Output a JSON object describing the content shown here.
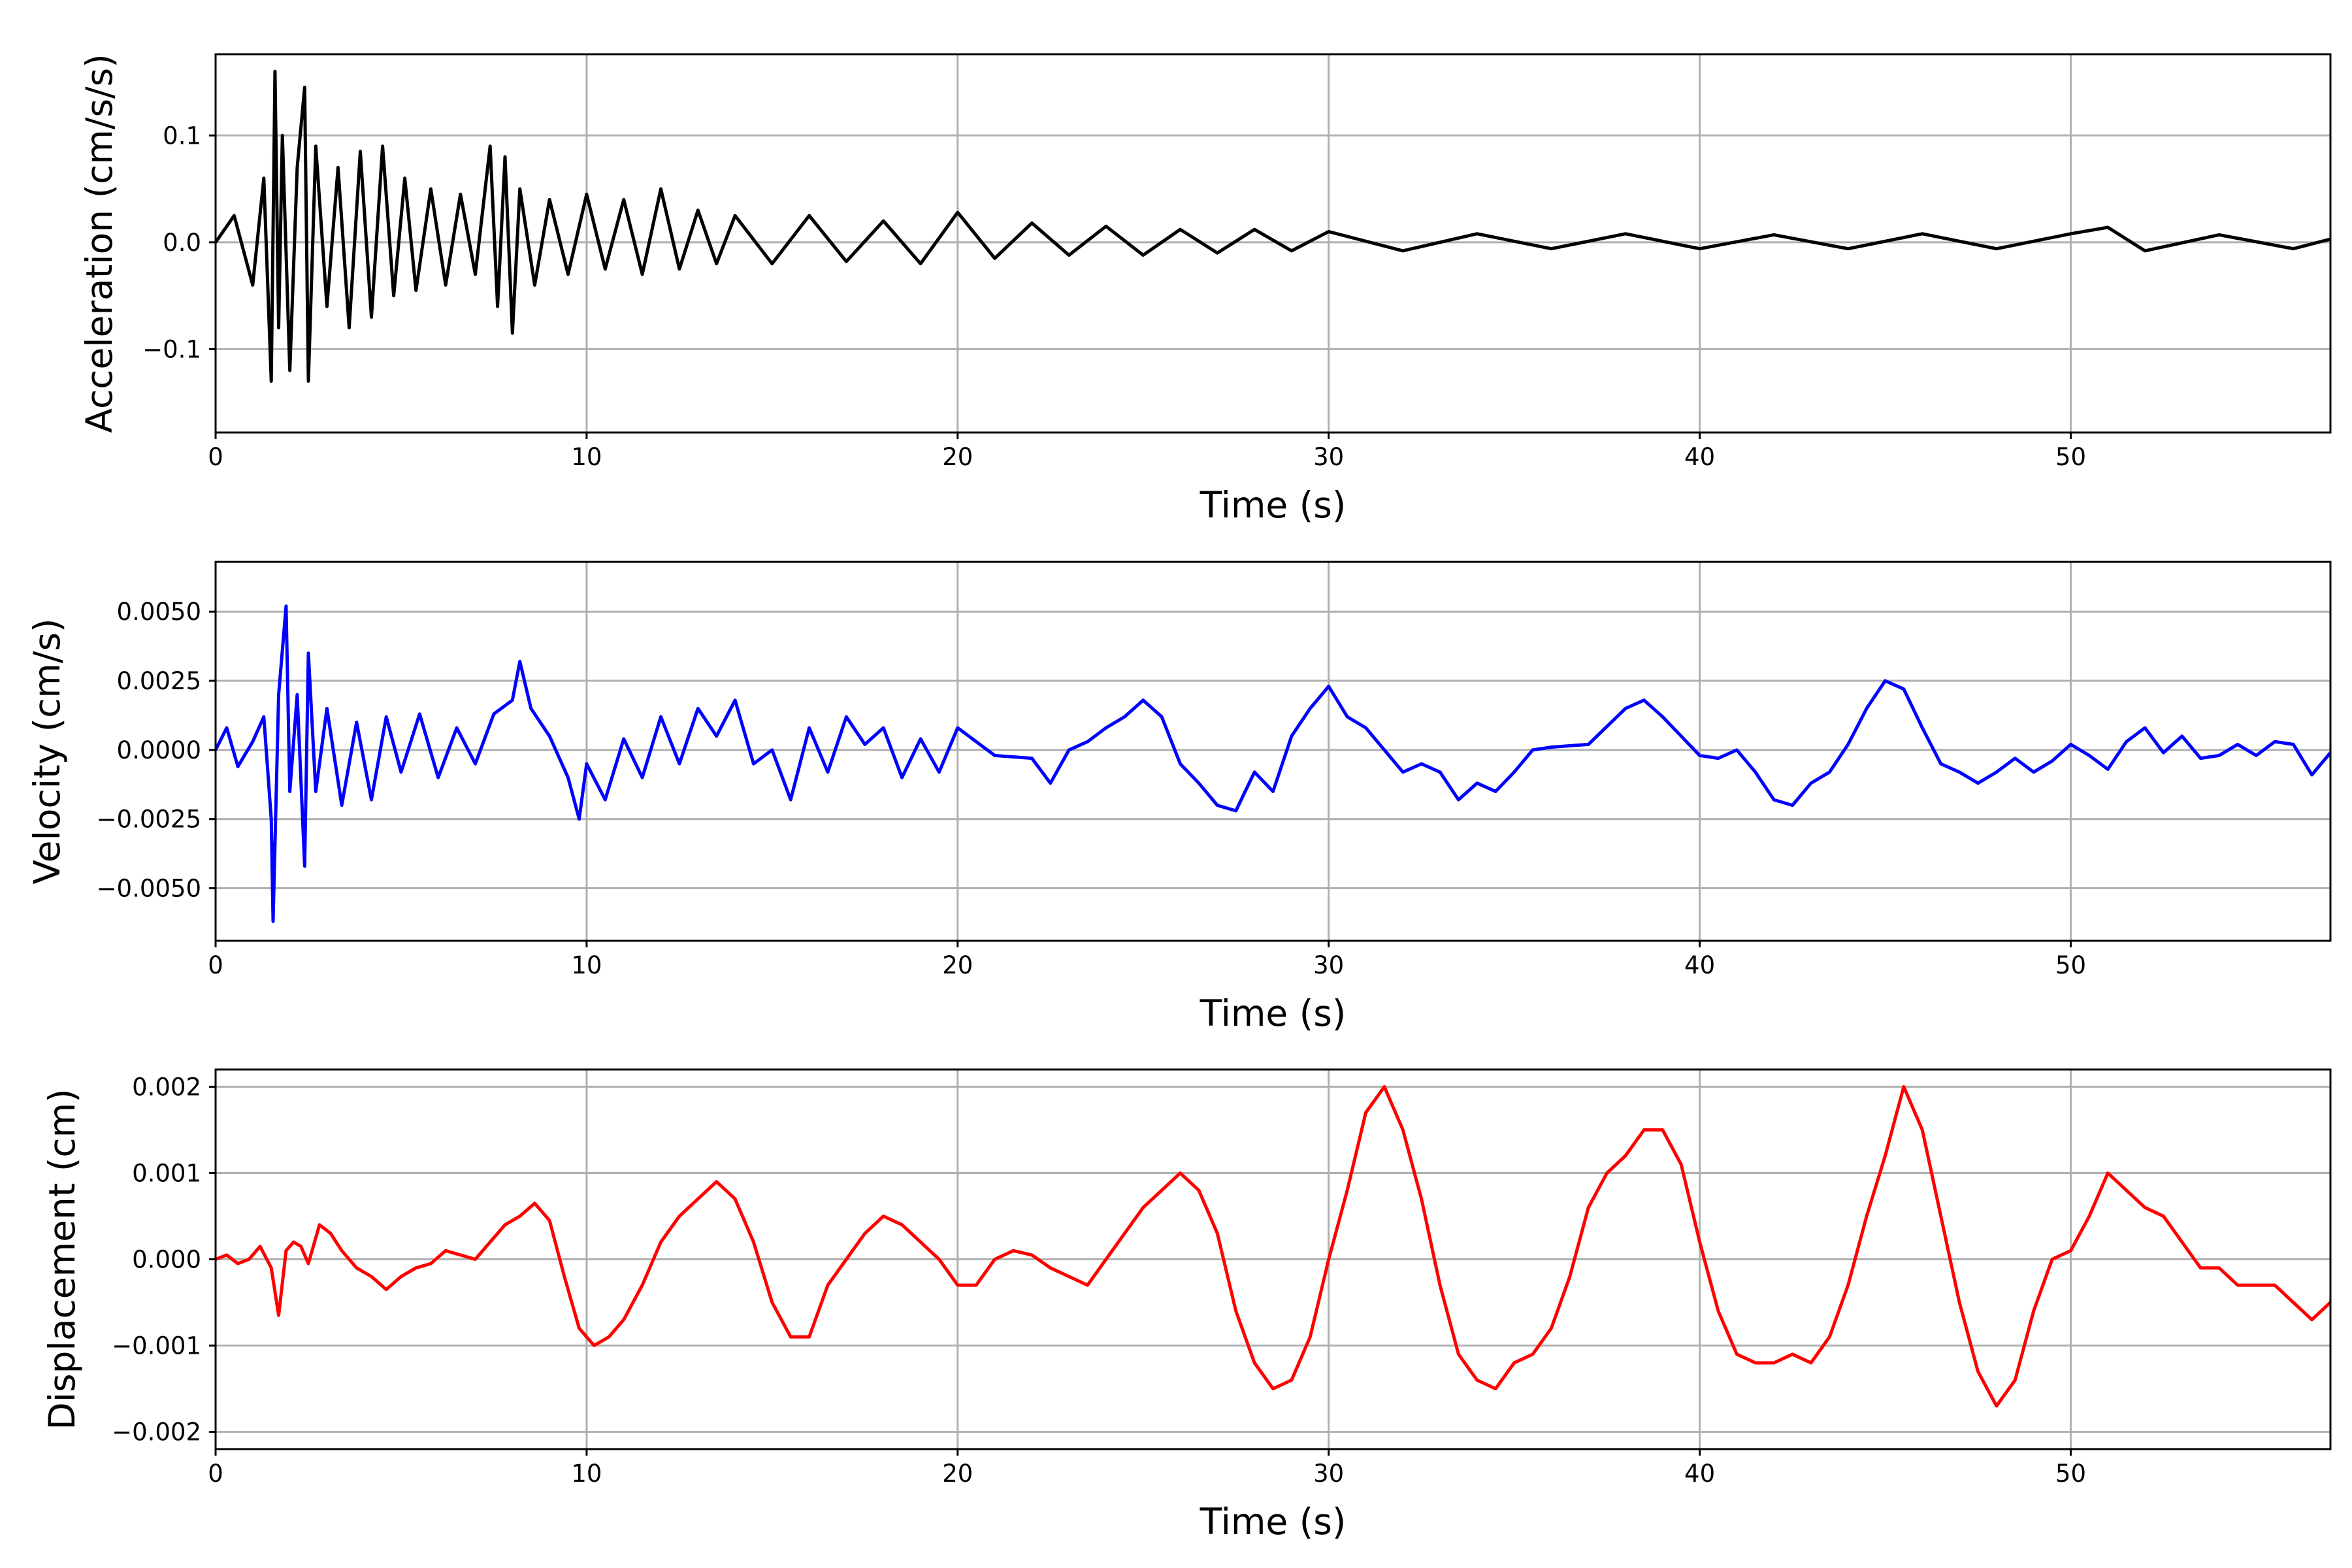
{
  "chart_data": [
    {
      "type": "line",
      "xlabel": "Time (s)",
      "ylabel": "Acceleration (cm/s/s)",
      "xlim": [
        0,
        57
      ],
      "ylim": [
        -0.178,
        0.176
      ],
      "xticks": [
        0,
        10,
        20,
        30,
        40,
        50
      ],
      "xtick_labels": [
        "0",
        "10",
        "20",
        "30",
        "40",
        "50"
      ],
      "yticks": [
        -0.1,
        0.0,
        0.1
      ],
      "ytick_labels": [
        "−0.1",
        "0.0",
        "0.1"
      ],
      "grid": true,
      "color": "#000000",
      "series": [
        {
          "x": [
            0,
            0.5,
            1.0,
            1.3,
            1.5,
            1.6,
            1.7,
            1.8,
            2.0,
            2.2,
            2.4,
            2.5,
            2.7,
            3.0,
            3.3,
            3.6,
            3.9,
            4.2,
            4.5,
            4.8,
            5.1,
            5.4,
            5.8,
            6.2,
            6.6,
            7.0,
            7.4,
            7.6,
            7.8,
            8.0,
            8.2,
            8.6,
            9.0,
            9.5,
            10.0,
            10.5,
            11.0,
            11.5,
            12.0,
            12.5,
            13.0,
            13.5,
            14.0,
            15.0,
            16.0,
            17.0,
            18.0,
            19.0,
            20.0,
            21.0,
            22.0,
            23.0,
            24.0,
            25.0,
            26.0,
            27.0,
            28.0,
            29.0,
            30.0,
            32.0,
            34.0,
            36.0,
            38.0,
            40.0,
            42.0,
            44.0,
            46.0,
            48.0,
            50.0,
            51.0,
            52.0,
            54.0,
            56.0,
            57.0
          ],
          "y": [
            0.0,
            0.025,
            -0.04,
            0.06,
            -0.13,
            0.16,
            -0.08,
            0.1,
            -0.12,
            0.07,
            0.145,
            -0.13,
            0.09,
            -0.06,
            0.07,
            -0.08,
            0.085,
            -0.07,
            0.09,
            -0.05,
            0.06,
            -0.045,
            0.05,
            -0.04,
            0.045,
            -0.03,
            0.09,
            -0.06,
            0.08,
            -0.085,
            0.05,
            -0.04,
            0.04,
            -0.03,
            0.045,
            -0.025,
            0.04,
            -0.03,
            0.05,
            -0.025,
            0.03,
            -0.02,
            0.025,
            -0.02,
            0.025,
            -0.018,
            0.02,
            -0.02,
            0.028,
            -0.015,
            0.018,
            -0.012,
            0.015,
            -0.012,
            0.012,
            -0.01,
            0.012,
            -0.008,
            0.01,
            -0.008,
            0.008,
            -0.006,
            0.008,
            -0.006,
            0.007,
            -0.006,
            0.008,
            -0.006,
            0.008,
            0.014,
            -0.008,
            0.007,
            -0.006,
            0.003
          ]
        }
      ]
    },
    {
      "type": "line",
      "xlabel": "Time (s)",
      "ylabel": "Velocity (cm/s)",
      "xlim": [
        0,
        57
      ],
      "ylim": [
        -0.0069,
        0.0068
      ],
      "xticks": [
        0,
        10,
        20,
        30,
        40,
        50
      ],
      "xtick_labels": [
        "0",
        "10",
        "20",
        "30",
        "40",
        "50"
      ],
      "yticks": [
        -0.005,
        -0.0025,
        0.0,
        0.0025,
        0.005
      ],
      "ytick_labels": [
        "−0.0050",
        "−0.0025",
        "0.0000",
        "0.0025",
        "0.0050"
      ],
      "grid": true,
      "color": "#0000ff",
      "series": [
        {
          "x": [
            0,
            0.3,
            0.6,
            1.0,
            1.3,
            1.5,
            1.55,
            1.7,
            1.9,
            2.0,
            2.2,
            2.4,
            2.5,
            2.7,
            3.0,
            3.4,
            3.8,
            4.2,
            4.6,
            5.0,
            5.5,
            6.0,
            6.5,
            7.0,
            7.5,
            8.0,
            8.2,
            8.5,
            9.0,
            9.5,
            9.8,
            10.0,
            10.5,
            11.0,
            11.5,
            12.0,
            12.5,
            13.0,
            13.5,
            14.0,
            14.5,
            15.0,
            15.5,
            16.0,
            16.5,
            17.0,
            17.5,
            18.0,
            18.5,
            19.0,
            19.5,
            20.0,
            21.0,
            22.0,
            22.5,
            23.0,
            23.5,
            24.0,
            24.5,
            25.0,
            25.5,
            26.0,
            26.5,
            27.0,
            27.5,
            28.0,
            28.5,
            29.0,
            29.5,
            30.0,
            30.5,
            31.0,
            31.5,
            32.0,
            32.5,
            33.0,
            33.5,
            34.0,
            34.5,
            35.0,
            35.5,
            36.0,
            37.0,
            38.0,
            38.5,
            39.0,
            39.5,
            40.0,
            40.5,
            41.0,
            41.5,
            42.0,
            42.5,
            43.0,
            43.5,
            44.0,
            44.5,
            45.0,
            45.5,
            46.0,
            46.5,
            47.0,
            47.5,
            48.0,
            48.5,
            49.0,
            49.5,
            50.0,
            50.5,
            51.0,
            51.5,
            52.0,
            52.5,
            53.0,
            53.5,
            54.0,
            54.5,
            55.0,
            55.5,
            56.0,
            56.5,
            57.0
          ],
          "y": [
            0.0,
            0.0008,
            -0.0006,
            0.0003,
            0.0012,
            -0.0025,
            -0.0062,
            0.002,
            0.0052,
            -0.0015,
            0.002,
            -0.0042,
            0.0035,
            -0.0015,
            0.0015,
            -0.002,
            0.001,
            -0.0018,
            0.0012,
            -0.0008,
            0.0013,
            -0.001,
            0.0008,
            -0.0005,
            0.0013,
            0.0018,
            0.0032,
            0.0015,
            0.0005,
            -0.001,
            -0.0025,
            -0.0005,
            -0.0018,
            0.0004,
            -0.001,
            0.0012,
            -0.0005,
            0.0015,
            0.0005,
            0.0018,
            -0.0005,
            0.0,
            -0.0018,
            0.0008,
            -0.0008,
            0.0012,
            0.0002,
            0.0008,
            -0.001,
            0.0004,
            -0.0008,
            0.0008,
            -0.0002,
            -0.0003,
            -0.0012,
            0.0,
            0.0003,
            0.0008,
            0.0012,
            0.0018,
            0.0012,
            -0.0005,
            -0.0012,
            -0.002,
            -0.0022,
            -0.0008,
            -0.0015,
            0.0005,
            0.0015,
            0.0023,
            0.0012,
            0.0008,
            0.0,
            -0.0008,
            -0.0005,
            -0.0008,
            -0.0018,
            -0.0012,
            -0.0015,
            -0.0008,
            0.0,
            0.0001,
            0.0002,
            0.0015,
            0.0018,
            0.0012,
            0.0005,
            -0.0002,
            -0.0003,
            0.0,
            -0.0008,
            -0.0018,
            -0.002,
            -0.0012,
            -0.0008,
            0.0002,
            0.0015,
            0.0025,
            0.0022,
            0.0008,
            -0.0005,
            -0.0008,
            -0.0012,
            -0.0008,
            -0.0003,
            -0.0008,
            -0.0004,
            0.0002,
            -0.0002,
            -0.0007,
            0.0003,
            0.0008,
            -0.0001,
            0.0005,
            -0.0003,
            -0.0002,
            0.0002,
            -0.0002,
            0.0003,
            0.0002,
            -0.0009,
            -0.0001
          ]
        }
      ]
    },
    {
      "type": "line",
      "xlabel": "Time (s)",
      "ylabel": "Displacement (cm)",
      "xlim": [
        0,
        57
      ],
      "ylim": [
        -0.0022,
        0.0022
      ],
      "xticks": [
        0,
        10,
        20,
        30,
        40,
        50
      ],
      "xtick_labels": [
        "0",
        "10",
        "20",
        "30",
        "40",
        "50"
      ],
      "yticks": [
        -0.002,
        -0.001,
        0.0,
        0.001,
        0.002
      ],
      "ytick_labels": [
        "−0.002",
        "−0.001",
        "0.000",
        "0.001",
        "0.002"
      ],
      "grid": true,
      "color": "#ff0000",
      "series": [
        {
          "x": [
            0,
            0.3,
            0.6,
            0.9,
            1.2,
            1.5,
            1.7,
            1.9,
            2.1,
            2.3,
            2.5,
            2.8,
            3.1,
            3.4,
            3.8,
            4.2,
            4.6,
            5.0,
            5.4,
            5.8,
            6.2,
            6.6,
            7.0,
            7.4,
            7.8,
            8.2,
            8.6,
            9.0,
            9.4,
            9.8,
            10.2,
            10.6,
            11.0,
            11.5,
            12.0,
            12.5,
            13.0,
            13.5,
            14.0,
            14.5,
            15.0,
            15.5,
            16.0,
            16.5,
            17.0,
            17.5,
            18.0,
            18.5,
            19.0,
            19.5,
            20.0,
            20.5,
            21.0,
            21.5,
            22.0,
            22.5,
            23.0,
            23.5,
            24.0,
            24.5,
            25.0,
            25.5,
            26.0,
            26.5,
            27.0,
            27.5,
            28.0,
            28.5,
            29.0,
            29.5,
            30.0,
            30.5,
            31.0,
            31.5,
            32.0,
            32.5,
            33.0,
            33.5,
            34.0,
            34.5,
            35.0,
            35.5,
            36.0,
            36.5,
            37.0,
            37.5,
            38.0,
            38.5,
            39.0,
            39.5,
            40.0,
            40.5,
            41.0,
            41.5,
            42.0,
            42.5,
            43.0,
            43.5,
            44.0,
            44.5,
            45.0,
            45.5,
            46.0,
            46.5,
            47.0,
            47.5,
            48.0,
            48.5,
            49.0,
            49.5,
            50.0,
            50.5,
            51.0,
            51.5,
            52.0,
            52.5,
            53.0,
            53.5,
            54.0,
            54.5,
            55.0,
            55.5,
            56.0,
            56.5,
            57.0
          ],
          "y": [
            0.0,
            5e-05,
            -5e-05,
            0.0,
            0.00015,
            -0.0001,
            -0.00065,
            0.0001,
            0.0002,
            0.00015,
            -5e-05,
            0.0004,
            0.0003,
            0.0001,
            -0.0001,
            -0.0002,
            -0.00035,
            -0.0002,
            -0.0001,
            -5e-05,
            0.0001,
            5e-05,
            0.0,
            0.0002,
            0.0004,
            0.0005,
            0.00065,
            0.00045,
            -0.0002,
            -0.0008,
            -0.001,
            -0.0009,
            -0.0007,
            -0.0003,
            0.0002,
            0.0005,
            0.0007,
            0.0009,
            0.0007,
            0.0002,
            -0.0005,
            -0.0009,
            -0.0009,
            -0.0003,
            0.0,
            0.0003,
            0.0005,
            0.0004,
            0.0002,
            0.0,
            -0.0003,
            -0.0003,
            0.0,
            0.0001,
            5e-05,
            -0.0001,
            -0.0002,
            -0.0003,
            0.0,
            0.0003,
            0.0006,
            0.0008,
            0.001,
            0.0008,
            0.0003,
            -0.0006,
            -0.0012,
            -0.0015,
            -0.0014,
            -0.0009,
            0.0,
            0.0008,
            0.0017,
            0.002,
            0.0015,
            0.0007,
            -0.0003,
            -0.0011,
            -0.0014,
            -0.0015,
            -0.0012,
            -0.0011,
            -0.0008,
            -0.0002,
            0.0006,
            0.001,
            0.0012,
            0.0015,
            0.0015,
            0.0011,
            0.0002,
            -0.0006,
            -0.0011,
            -0.0012,
            -0.0012,
            -0.0011,
            -0.0012,
            -0.0009,
            -0.0003,
            0.0005,
            0.0012,
            0.002,
            0.0015,
            0.0005,
            -0.0005,
            -0.0013,
            -0.0017,
            -0.0014,
            -0.0006,
            0.0,
            0.0001,
            0.0005,
            0.001,
            0.0008,
            0.0006,
            0.0005,
            0.0002,
            -0.0001,
            -0.0001,
            -0.0003,
            -0.0003,
            -0.0003,
            -0.0005,
            -0.0007,
            -0.0005
          ]
        }
      ]
    }
  ]
}
